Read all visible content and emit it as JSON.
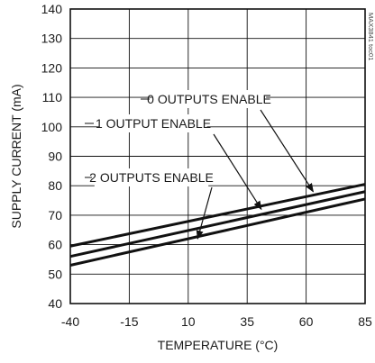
{
  "chart_data": {
    "type": "line",
    "title": "",
    "xlabel": "TEMPERATURE (°C)",
    "ylabel": "SUPPLY CURRENT (mA)",
    "xlim": [
      -40,
      85
    ],
    "ylim": [
      40,
      140
    ],
    "x_ticks": [
      -40,
      -15,
      10,
      35,
      60,
      85
    ],
    "y_ticks": [
      40,
      50,
      60,
      70,
      80,
      90,
      100,
      110,
      120,
      130,
      140
    ],
    "grid": true,
    "legend": "none",
    "series": [
      {
        "name": "0 OUTPUTS ENABLE",
        "x": [
          -40,
          85
        ],
        "y": [
          59.5,
          80.5
        ]
      },
      {
        "name": "1 OUTPUT ENABLE",
        "x": [
          -40,
          85
        ],
        "y": [
          56,
          78
        ]
      },
      {
        "name": "2 OUTPUTS ENABLE",
        "x": [
          -40,
          85
        ],
        "y": [
          53,
          75.5
        ]
      }
    ],
    "annotations": [
      {
        "text": "0 OUTPUTS ENABLE",
        "series_index": 0,
        "arrow_to": [
          63,
          78
        ]
      },
      {
        "text": "1 OUTPUT ENABLE",
        "series_index": 1,
        "arrow_to": [
          41,
          72
        ]
      },
      {
        "text": "2 OUTPUTS ENABLE",
        "series_index": 2,
        "arrow_to": [
          14,
          62
        ]
      }
    ],
    "watermark": "MAX3841 toc01"
  }
}
